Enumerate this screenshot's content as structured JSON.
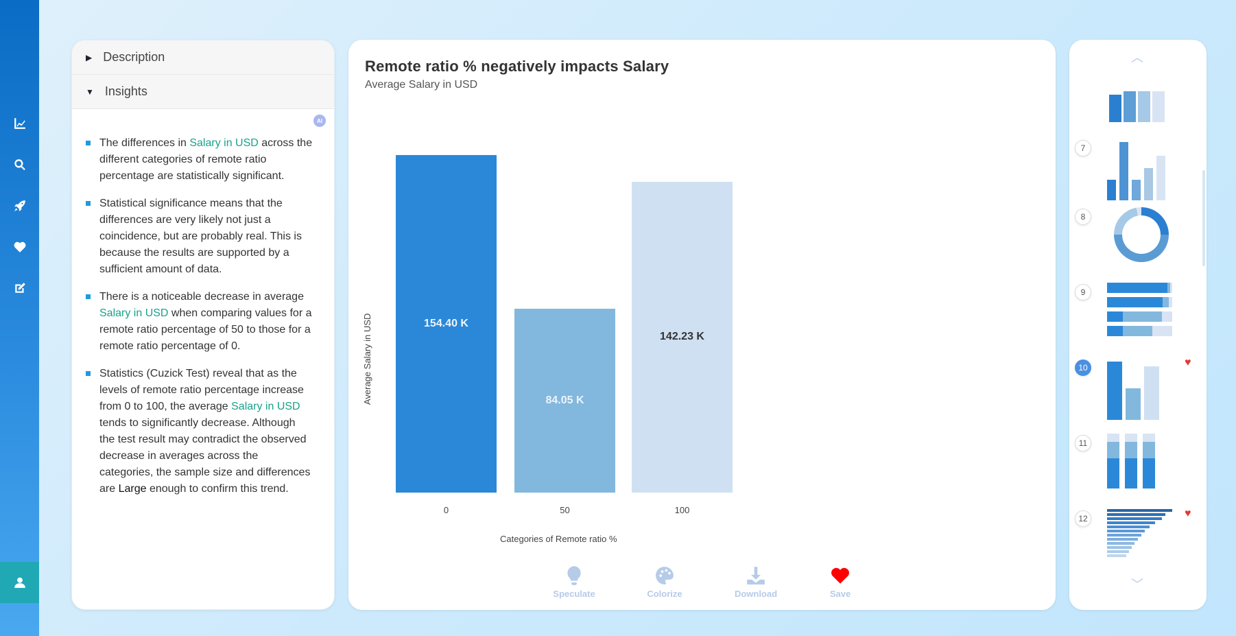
{
  "sidebar": {
    "items": [
      "chart-line-icon",
      "search-icon",
      "rocket-icon",
      "heart-icon",
      "edit-icon",
      "user-icon"
    ]
  },
  "left": {
    "description_label": "Description",
    "insights_label": "Insights",
    "ai_badge": "AI",
    "insights": [
      {
        "parts": [
          "The differences in ",
          "Salary in USD",
          " across the different categories of remote ratio percentage are statistically significant."
        ]
      },
      {
        "parts": [
          "Statistical significance means that the differences are very likely not just a coincidence, but are probably real. This is because the results are supported by a sufficient amount of data."
        ]
      },
      {
        "parts": [
          "There is a noticeable decrease in average ",
          "Salary in USD",
          " when comparing values for a remote ratio percentage of 50 to those for a remote ratio percentage of 0."
        ]
      },
      {
        "parts": [
          "Statistics (Cuzick Test) reveal that as the levels of remote ratio percentage increase from 0 to 100, the average ",
          "Salary in USD",
          " tends to significantly decrease. Although the test result may contradict the observed decrease in averages across the categories, the sample size and differences are ",
          "Large",
          " enough to confirm this trend."
        ]
      }
    ]
  },
  "chart_data": {
    "type": "bar",
    "title": "Remote ratio % negatively impacts Salary",
    "subtitle": "Average Salary in USD",
    "xlabel": "Categories of Remote ratio %",
    "ylabel": "Average Salary in USD",
    "categories": [
      "0",
      "50",
      "100"
    ],
    "values": [
      154.4,
      84.05,
      142.23
    ],
    "labels": [
      "154.40 K",
      "84.05 K",
      "142.23 K"
    ],
    "colors": [
      "#2b88d8",
      "#82b8de",
      "#cfe0f2"
    ],
    "label_colors": [
      "#f0f4fa",
      "#eef4fa",
      "#333333"
    ],
    "ylim": [
      0,
      154.4
    ]
  },
  "actions": [
    {
      "label": "Speculate",
      "icon": "lightbulb-icon"
    },
    {
      "label": "Colorize",
      "icon": "palette-icon"
    },
    {
      "label": "Download",
      "icon": "download-icon"
    },
    {
      "label": "Save",
      "icon": "heart-icon"
    }
  ],
  "thumbnails": {
    "numbers": [
      "7",
      "8",
      "9",
      "10",
      "11",
      "12"
    ],
    "active": "10",
    "saved": [
      "10",
      "12"
    ]
  }
}
